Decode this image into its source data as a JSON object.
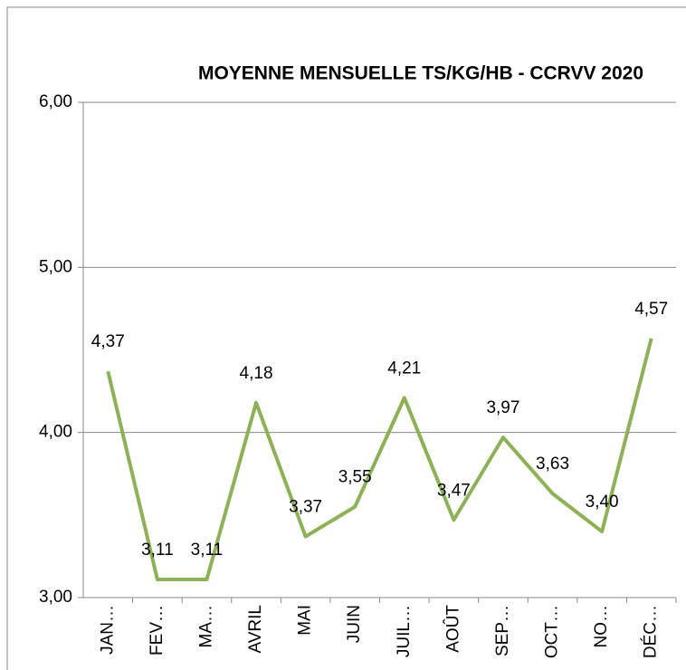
{
  "chart_data": {
    "type": "line",
    "title": "MOYENNE MENSUELLE TS/KG/HB - CCRVV 2020",
    "categories": [
      "JAN…",
      "FEV…",
      "MA…",
      "AVRIL",
      "MAI",
      "JUIN",
      "JUIL…",
      "AOÛT",
      "SEP…",
      "OCT…",
      "NO…",
      "DÉC…"
    ],
    "values": [
      4.37,
      3.11,
      3.11,
      4.18,
      3.37,
      3.55,
      4.21,
      3.47,
      3.97,
      3.63,
      3.4,
      4.57
    ],
    "value_labels": [
      "4,37",
      "3,11",
      "3,11",
      "4,18",
      "3,37",
      "3,55",
      "4,21",
      "3,47",
      "3,97",
      "3,63",
      "3,40",
      "4,57"
    ],
    "color": "#8db255",
    "ylim": [
      3,
      6
    ],
    "yticks": [
      {
        "value": 3,
        "label": "3,00"
      },
      {
        "value": 4,
        "label": "4,00"
      },
      {
        "value": 5,
        "label": "5,00"
      },
      {
        "value": 6,
        "label": "6,00"
      }
    ],
    "grid": true
  }
}
